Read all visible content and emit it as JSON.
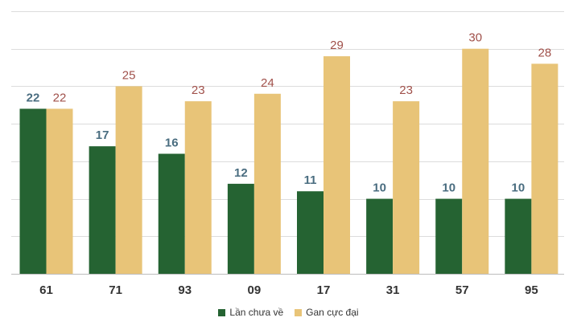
{
  "chart_data": {
    "type": "bar",
    "categories": [
      "61",
      "71",
      "93",
      "09",
      "17",
      "31",
      "57",
      "95"
    ],
    "series": [
      {
        "name": "Lần chưa về",
        "values": [
          22,
          17,
          16,
          12,
          11,
          10,
          10,
          10
        ],
        "color": "#256332",
        "label_color": "#4a6d80"
      },
      {
        "name": "Gan cực đại",
        "values": [
          22,
          25,
          23,
          24,
          29,
          23,
          30,
          28
        ],
        "color": "#e8c478",
        "label_color": "#a0504a"
      }
    ],
    "value_labels": {
      "series_0": [
        "22",
        "17",
        "16",
        "12",
        "11",
        "10",
        "10",
        "10"
      ],
      "series_1": [
        "22",
        "25",
        "23",
        "24",
        "29",
        "23",
        "30",
        "28"
      ]
    },
    "ylim": [
      0,
      35
    ],
    "y_grid_step": 5,
    "grid": true,
    "legend_position": "bottom"
  }
}
